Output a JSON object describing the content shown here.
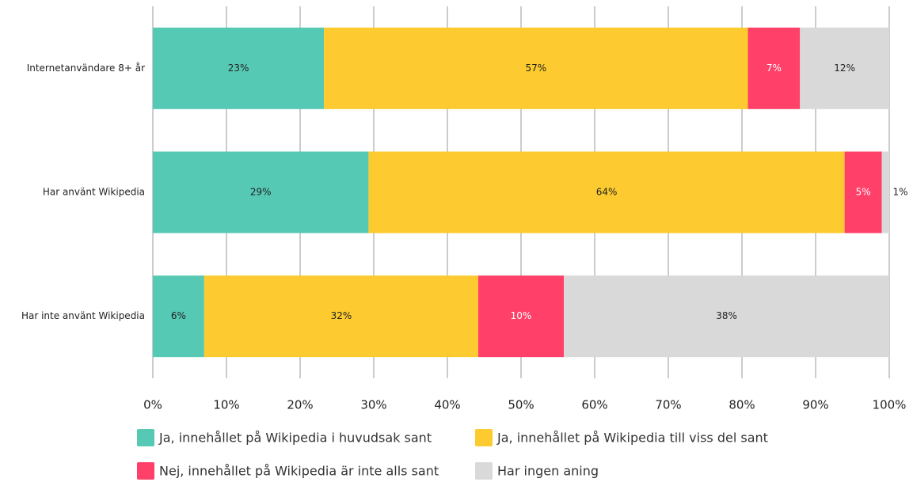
{
  "chart_data": {
    "type": "bar",
    "orientation": "horizontal",
    "stacked": "percent",
    "categories": [
      "Internetanvändare 8+ år",
      "Har använt Wikipedia",
      "Har inte använt Wikipedia"
    ],
    "series": [
      {
        "name": "Ja, innehållet på Wikipedia i huvudsak sant",
        "color": "#56c9b5",
        "values": [
          23,
          29,
          6
        ],
        "value_labels": [
          "23%",
          "29%",
          "6%"
        ]
      },
      {
        "name": "Ja, innehållet på Wikipedia till viss del sant",
        "color": "#fdcb2f",
        "values": [
          57,
          64,
          32
        ],
        "value_labels": [
          "57%",
          "64%",
          "32%"
        ]
      },
      {
        "name": "Nej, innehållet på Wikipedia är inte alls sant",
        "color": "#ff4069",
        "values": [
          7,
          5,
          10
        ],
        "value_labels": [
          "7%",
          "5%",
          "10%"
        ]
      },
      {
        "name": "Har ingen aning",
        "color": "#d9d9d9",
        "values": [
          12,
          1,
          38
        ],
        "value_labels": [
          "12%",
          "1%",
          "38%"
        ]
      }
    ],
    "xlim": [
      0,
      100
    ],
    "xticks": [
      {
        "value": 0,
        "label": "0%"
      },
      {
        "value": 10,
        "label": "10%"
      },
      {
        "value": 20,
        "label": "20%"
      },
      {
        "value": 30,
        "label": "30%"
      },
      {
        "value": 40,
        "label": "40%"
      },
      {
        "value": 50,
        "label": "50%"
      },
      {
        "value": 60,
        "label": "60%"
      },
      {
        "value": 70,
        "label": "70%"
      },
      {
        "value": 80,
        "label": "80%"
      },
      {
        "value": 90,
        "label": "90%"
      },
      {
        "value": 100,
        "label": "100%"
      }
    ],
    "grid": true,
    "legend": "bottom"
  }
}
